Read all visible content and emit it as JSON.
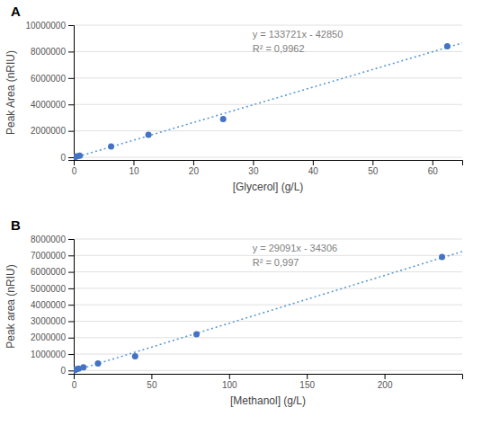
{
  "chart_data": [
    {
      "type": "scatter",
      "title": "A",
      "x_label": "[Glycerol] (g/L)",
      "y_label": "Peak Area (nRIU)",
      "x": [
        0.125,
        0.25,
        0.5,
        1.0,
        6.25,
        12.5,
        25.0,
        62.5
      ],
      "values": [
        10000,
        50000,
        80000,
        130000,
        820000,
        1700000,
        2900000,
        8400000
      ],
      "color": "#4472C4",
      "marker": "circle",
      "trendline": {
        "slope": 133721,
        "intercept": -42850,
        "color": "#5B9BD5",
        "line_style": "dotted"
      },
      "annotations": [
        "y = 133721x - 42850",
        "R² = 0,9962"
      ],
      "xlim": [
        0,
        65
      ],
      "ylim": [
        -200000,
        10000000
      ],
      "xticks": [
        0,
        10,
        20,
        30,
        40,
        50,
        60
      ],
      "yticks": [
        0,
        2000000,
        4000000,
        6000000,
        8000000,
        10000000
      ],
      "grid": true
    },
    {
      "type": "scatter",
      "title": "B",
      "x_label": "[Methanol] (g/L)",
      "y_label": "Peak area (nRIU)",
      "x": [
        0.395,
        0.79,
        1.58,
        3.16,
        6.25,
        15.6,
        39.5,
        79.0,
        237.0
      ],
      "values": [
        20000,
        50000,
        80000,
        120000,
        200000,
        430000,
        870000,
        2200000,
        6900000
      ],
      "color": "#4472C4",
      "marker": "circle",
      "trendline": {
        "slope": 29091,
        "intercept": -34306,
        "color": "#5B9BD5",
        "line_style": "dotted"
      },
      "annotations": [
        "y = 29091x - 34306",
        "R² = 0,997"
      ],
      "xlim": [
        0,
        250
      ],
      "ylim": [
        -200000,
        8000000
      ],
      "xticks": [
        0,
        50,
        100,
        150,
        200
      ],
      "yticks": [
        0,
        1000000,
        2000000,
        3000000,
        4000000,
        5000000,
        6000000,
        7000000,
        8000000
      ],
      "grid": true
    }
  ]
}
